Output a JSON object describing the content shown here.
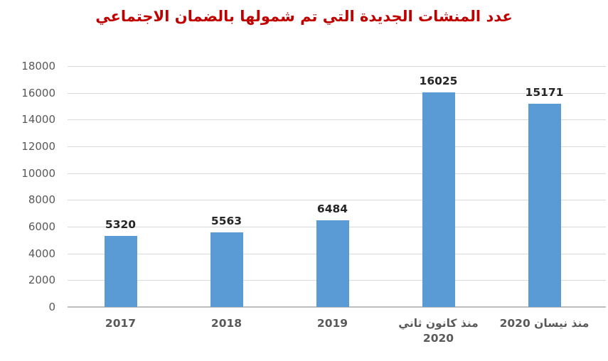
{
  "chart_data": {
    "type": "bar",
    "title": "عدد المنشات الجديدة التي تم شمولها بالضمان الاجتماعي",
    "categories": [
      "2017",
      "2018",
      "2019",
      "منذ كانون ثاني 2020",
      "منذ نيسان 2020"
    ],
    "category_lines": [
      [
        "2017"
      ],
      [
        "2018"
      ],
      [
        "2019"
      ],
      [
        "منذ كانون ثاني",
        "2020"
      ],
      [
        "منذ نيسان 2020"
      ]
    ],
    "values": [
      5320,
      5563,
      6484,
      16025,
      15171
    ],
    "data_labels": [
      "5320",
      "5563",
      "6484",
      "16025",
      "15171"
    ],
    "xlabel": "",
    "ylabel": "",
    "ylim": [
      0,
      18000
    ],
    "ytick_step": 2000,
    "ytick_labels": [
      "0",
      "2000",
      "4000",
      "6000",
      "8000",
      "10000",
      "12000",
      "14000",
      "16000",
      "18000"
    ],
    "grid": "horizontal",
    "legend": "none",
    "colors": {
      "bar": "#5B9BD5",
      "title": "#C00000",
      "axis_label": "#595959",
      "data_label": "#262626",
      "gridline": "#D9D9D9",
      "axis_line": "#BFBFBF",
      "background": "#FFFFFF"
    }
  }
}
